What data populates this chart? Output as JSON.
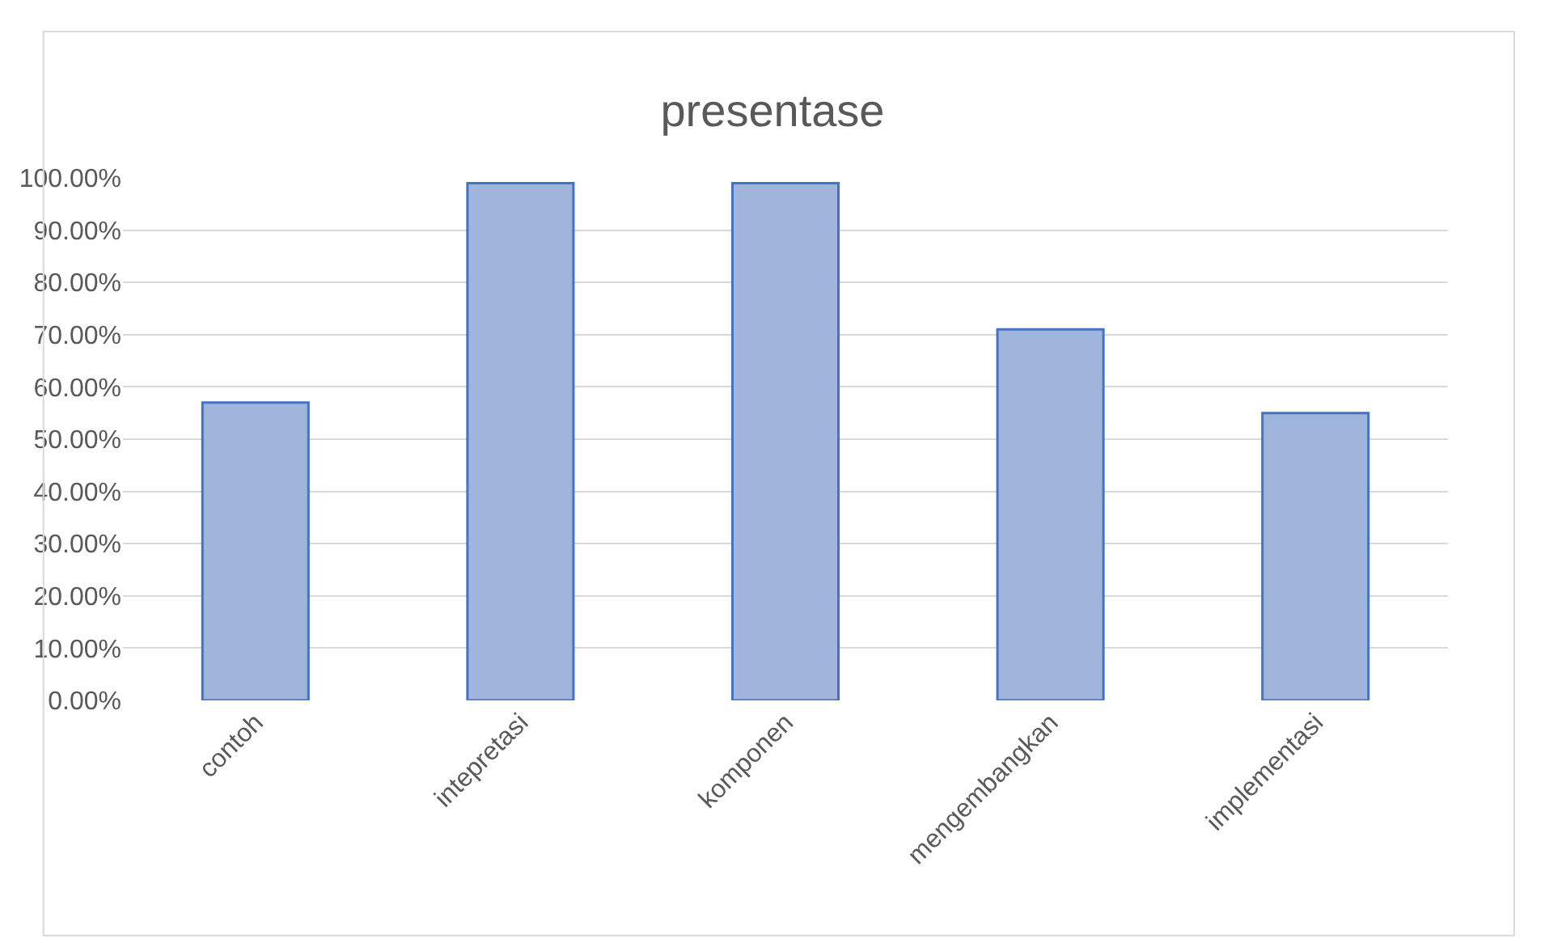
{
  "chart_data": {
    "type": "bar",
    "title": "presentase",
    "categories": [
      "contoh",
      "intepretasi",
      "komponen",
      "mengembangkan",
      "implementasi"
    ],
    "values": [
      57,
      99,
      99,
      71,
      55
    ],
    "color": "#9fb5db",
    "ylim": [
      0,
      100
    ],
    "yticks": [
      {
        "value": 0,
        "label": "0.00%"
      },
      {
        "value": 10,
        "label": "10.00%"
      },
      {
        "value": 20,
        "label": "20.00%"
      },
      {
        "value": 30,
        "label": "30.00%"
      },
      {
        "value": 40,
        "label": "40.00%"
      },
      {
        "value": 50,
        "label": "50.00%"
      },
      {
        "value": 60,
        "label": "60.00%"
      },
      {
        "value": 70,
        "label": "70.00%"
      },
      {
        "value": 80,
        "label": "80.00%"
      },
      {
        "value": 90,
        "label": "90.00%"
      },
      {
        "value": 100,
        "label": "100.00%"
      }
    ],
    "grid": "y",
    "legend": false
  }
}
